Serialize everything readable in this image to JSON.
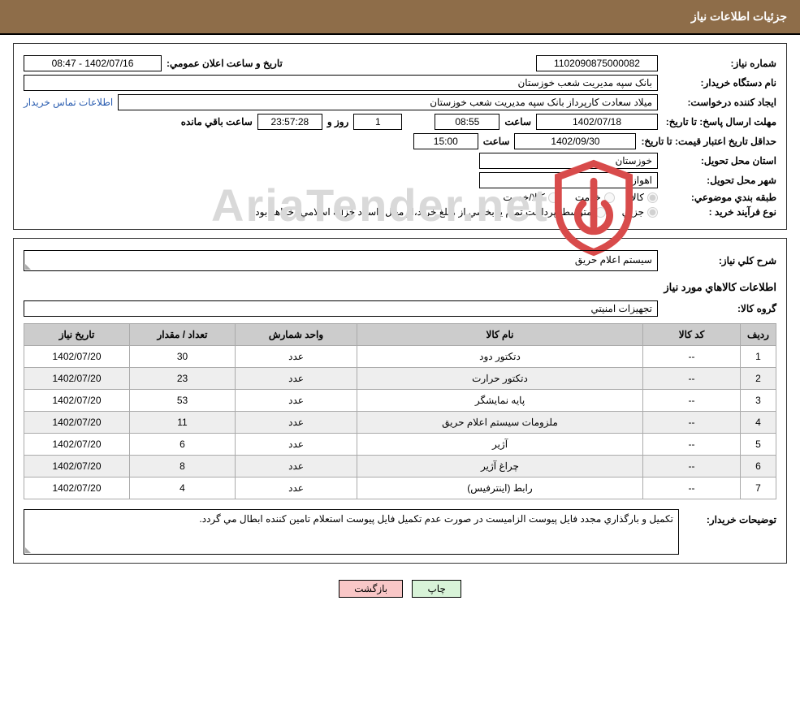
{
  "header_title": "جزئيات اطلاعات نياز",
  "fields": {
    "need_number_label": "شماره نياز:",
    "need_number": "1102090875000082",
    "announce_date_label": "تاريخ و ساعت اعلان عمومي:",
    "announce_date": "1402/07/16 - 08:47",
    "buyer_org_label": "نام دستگاه خريدار:",
    "buyer_org": "بانک سپه مديريت شعب خوزستان",
    "requester_label": "ايجاد کننده درخواست:",
    "requester": "ميلاد سعادت کارپرداز بانک سپه مديريت شعب خوزستان",
    "contact_link": "اطلاعات تماس خريدار",
    "deadline_label": "مهلت ارسال پاسخ: تا تاريخ:",
    "deadline_date": "1402/07/18",
    "hour_label": "ساعت",
    "deadline_time": "08:55",
    "days_value": "1",
    "days_and_label": "روز و",
    "remaining_time": "23:57:28",
    "remaining_label": "ساعت باقي مانده",
    "price_valid_label": "حداقل تاريخ اعتبار قيمت: تا تاريخ:",
    "price_valid_date": "1402/09/30",
    "price_valid_time": "15:00",
    "province_label": "استان محل تحويل:",
    "province": "خوزستان",
    "city_label": "شهر محل تحويل:",
    "city": "اهواز",
    "classification_label": "طبقه بندي موضوعي:",
    "radio_goods": "کالا",
    "radio_service": "خدمت",
    "radio_goods_service": "کالا/خدمت",
    "process_type_label": "نوع فرآيند خريد :",
    "radio_partial": "جزيي",
    "radio_medium": "متوسط",
    "process_note": "پرداخت تمام يا بخشي از مبلغ خريد،از محل \"اسناد خزانه اسلامي\" خواهد بود.",
    "general_desc_label": "شرح کلي نياز:",
    "general_desc": "سيستم اعلام حريق",
    "goods_info_title": "اطلاعات كالاهاي مورد نياز",
    "goods_group_label": "گروه كالا:",
    "goods_group": "تجهيزات امنيتي",
    "buyer_notes_label": "توضيحات خريدار:",
    "buyer_notes": "تکميل و بارگذاري مجدد فايل پيوست الزاميست در صورت عدم تکميل فايل پيوست استعلام تامين کننده ابطال مي گردد."
  },
  "table": {
    "headers": {
      "radif": "رديف",
      "code": "کد کالا",
      "name": "نام کالا",
      "unit": "واحد شمارش",
      "qty": "تعداد / مقدار",
      "date": "تاريخ نياز"
    },
    "rows": [
      {
        "radif": "1",
        "code": "--",
        "name": "دتکتور دود",
        "unit": "عدد",
        "qty": "30",
        "date": "1402/07/20"
      },
      {
        "radif": "2",
        "code": "--",
        "name": "دتکتور حرارت",
        "unit": "عدد",
        "qty": "23",
        "date": "1402/07/20"
      },
      {
        "radif": "3",
        "code": "--",
        "name": "پايه نمايشگر",
        "unit": "عدد",
        "qty": "53",
        "date": "1402/07/20"
      },
      {
        "radif": "4",
        "code": "--",
        "name": "ملزومات سيستم اعلام حريق",
        "unit": "عدد",
        "qty": "11",
        "date": "1402/07/20"
      },
      {
        "radif": "5",
        "code": "--",
        "name": "آژير",
        "unit": "عدد",
        "qty": "6",
        "date": "1402/07/20"
      },
      {
        "radif": "6",
        "code": "--",
        "name": "چراغ آژير",
        "unit": "عدد",
        "qty": "8",
        "date": "1402/07/20"
      },
      {
        "radif": "7",
        "code": "--",
        "name": "رابط (اينترفيس)",
        "unit": "عدد",
        "qty": "4",
        "date": "1402/07/20"
      }
    ]
  },
  "buttons": {
    "print": "چاپ",
    "back": "بازگشت"
  },
  "watermark_text": "AriaTender.net",
  "colors": {
    "header_bg": "#8e6d49",
    "header_fg": "#ffffff",
    "th_bg": "#cccccc",
    "row_alt_bg": "#eeeeee",
    "link": "#2a5db0",
    "btn_print_bg": "#d8f3d8",
    "btn_back_bg": "#f9c7c7",
    "watermark_color": "#d9d9d9",
    "watermark_shield": "#d84b4b"
  }
}
